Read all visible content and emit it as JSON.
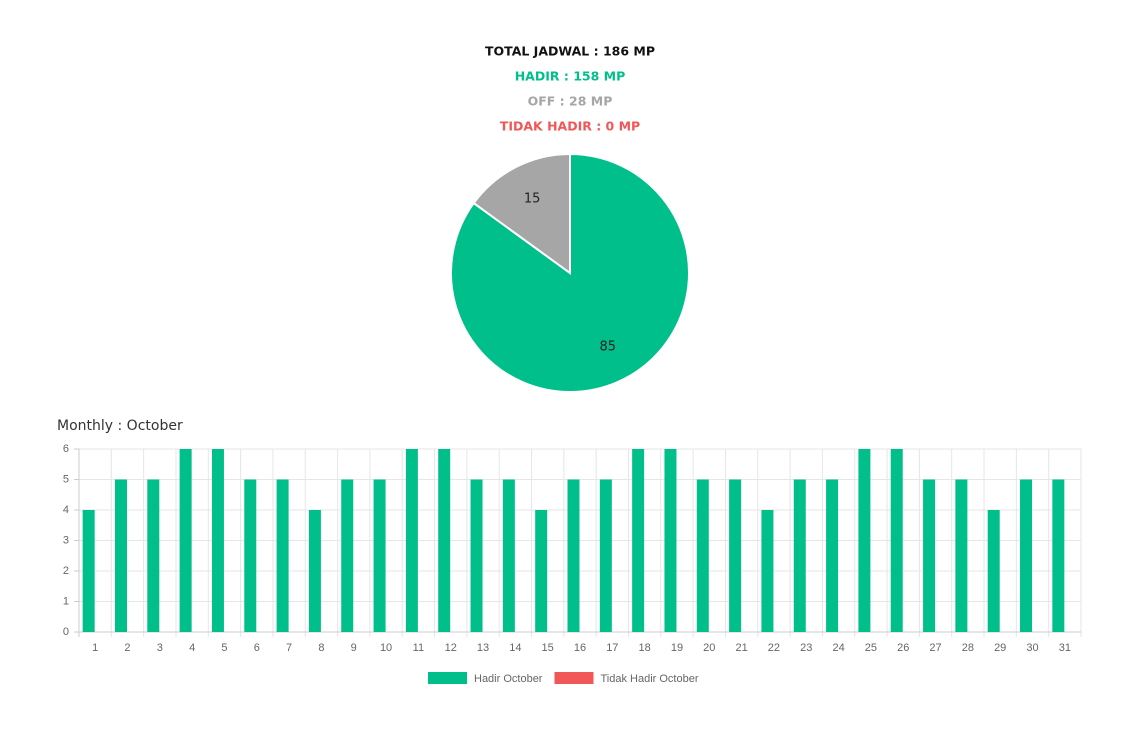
{
  "chart_data": [
    {
      "type": "pie",
      "annotations": [
        {
          "text": "TOTAL JADWAL : 186 MP",
          "color": "#111111"
        },
        {
          "text": "HADIR : 158 MP",
          "color": "#00bf8a"
        },
        {
          "text": "OFF : 28 MP",
          "color": "#a6a6a6"
        },
        {
          "text": "TIDAK HADIR : 0 MP",
          "color": "#f25757"
        }
      ],
      "categories": [
        null,
        null
      ],
      "values": [
        85,
        15
      ],
      "colors": [
        "#00bf8a",
        "#a6a6a6"
      ]
    },
    {
      "type": "bar",
      "title": "Monthly : October",
      "categories": [
        "1",
        "2",
        "3",
        "4",
        "5",
        "6",
        "7",
        "8",
        "9",
        "10",
        "11",
        "12",
        "13",
        "14",
        "15",
        "16",
        "17",
        "18",
        "19",
        "20",
        "21",
        "22",
        "23",
        "24",
        "25",
        "26",
        "27",
        "28",
        "29",
        "30",
        "31"
      ],
      "series": [
        {
          "name": "Hadir October",
          "color": "#00bf8a",
          "values": [
            4,
            5,
            5,
            6,
            6,
            5,
            5,
            4,
            5,
            5,
            6,
            6,
            5,
            5,
            4,
            5,
            5,
            6,
            6,
            5,
            5,
            4,
            5,
            5,
            6,
            6,
            5,
            5,
            4,
            5,
            5
          ]
        },
        {
          "name": "Tidak Hadir October",
          "color": "#f25757",
          "values": [
            0,
            0,
            0,
            0,
            0,
            0,
            0,
            0,
            0,
            0,
            0,
            0,
            0,
            0,
            0,
            0,
            0,
            0,
            0,
            0,
            0,
            0,
            0,
            0,
            0,
            0,
            0,
            0,
            0,
            0,
            0
          ]
        }
      ],
      "ylim": [
        0,
        6
      ],
      "yticks": [
        0,
        1,
        2,
        3,
        4,
        5,
        6
      ],
      "grid": true,
      "legend": "bottom"
    }
  ]
}
